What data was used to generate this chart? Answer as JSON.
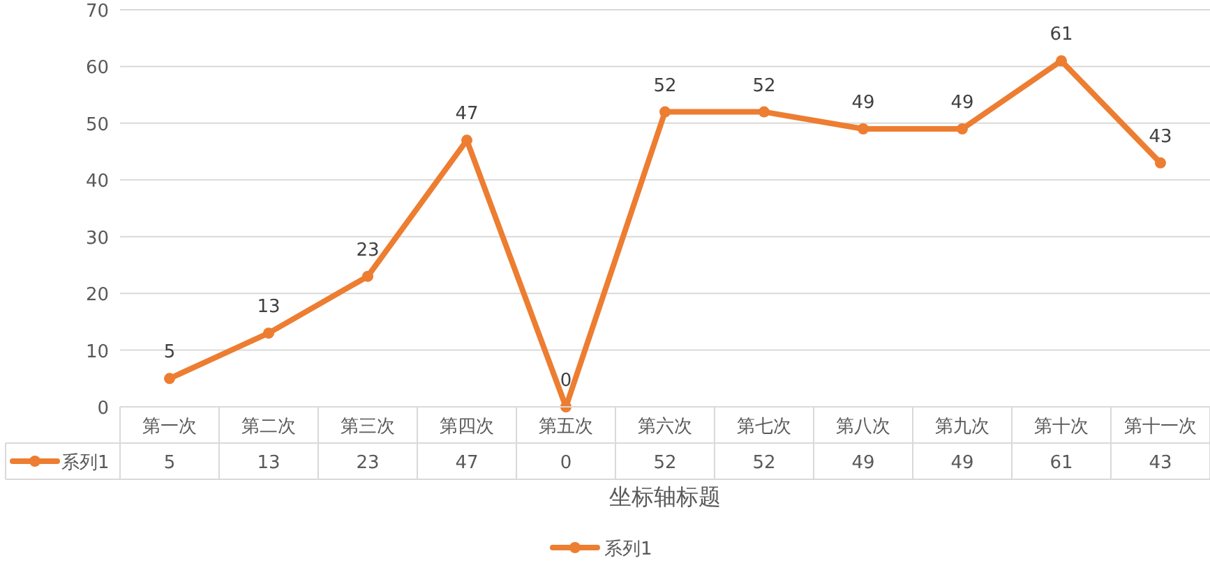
{
  "chart_data": {
    "type": "line",
    "categories": [
      "第一次",
      "第二次",
      "第三次",
      "第四次",
      "第五次",
      "第六次",
      "第七次",
      "第八次",
      "第九次",
      "第十次",
      "第十一次"
    ],
    "series": [
      {
        "name": "系列1",
        "color": "#ed7d31",
        "values": [
          5,
          13,
          23,
          47,
          0,
          52,
          52,
          49,
          49,
          61,
          43
        ]
      }
    ],
    "xlabel": "坐标轴标题",
    "ylim": [
      0,
      70
    ],
    "yticks": [
      0,
      10,
      20,
      30,
      40,
      50,
      60,
      70
    ],
    "grid": "y",
    "legend": "bottom",
    "marker": "circle",
    "line_style": "solid",
    "data_labels": true,
    "annotations": [
      {
        "text": "5",
        "x": "第一次",
        "y": 5
      },
      {
        "text": "13",
        "x": "第二次",
        "y": 13
      },
      {
        "text": "23",
        "x": "第三次",
        "y": 23
      },
      {
        "text": "47",
        "x": "第四次",
        "y": 47
      },
      {
        "text": "0",
        "x": "第五次",
        "y": 0
      },
      {
        "text": "52",
        "x": "第六次",
        "y": 52
      },
      {
        "text": "52",
        "x": "第七次",
        "y": 52
      },
      {
        "text": "49",
        "x": "第八次",
        "y": 49
      },
      {
        "text": "49",
        "x": "第九次",
        "y": 49
      },
      {
        "text": "61",
        "x": "第十次",
        "y": 61
      },
      {
        "text": "43",
        "x": "第十一次",
        "y": 43
      }
    ]
  }
}
